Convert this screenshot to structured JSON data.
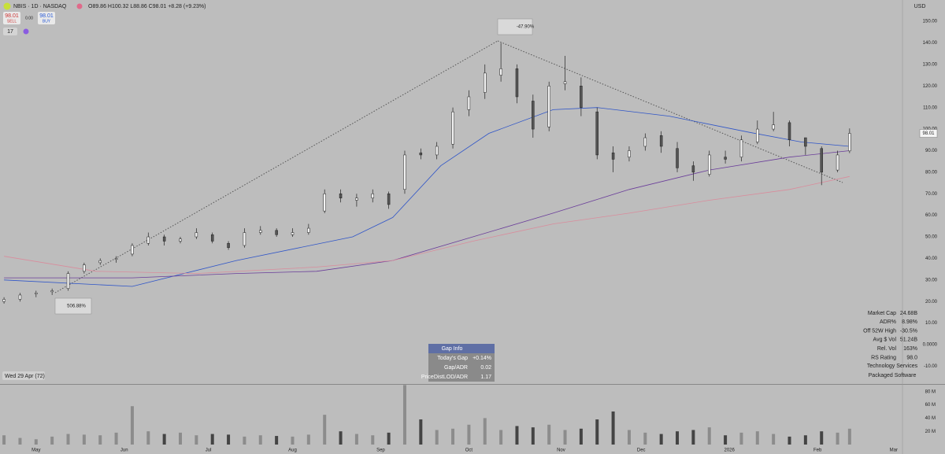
{
  "header": {
    "symbol": "NBIS · 1D · NASDAQ",
    "ohlc": "O89.86 H100.32 L88.86 C98.01 +8.28 (+9.23%)",
    "sell_price": "98.01",
    "sell": "SELL",
    "spread": "0.00",
    "buy_price": "98.01",
    "buy": "BUY",
    "indicator": "17",
    "currency": "USD",
    "last_price": "98.01",
    "date_label": "Wed 29 Apr (72)"
  },
  "annotations": {
    "gain": "506.88%",
    "drawdown": "-47.90%"
  },
  "gap_info": {
    "title": "Gap Info",
    "rows": [
      [
        "Today's Gap",
        "+0.14%"
      ],
      [
        "Gap/ADR",
        "0.02"
      ],
      [
        "PriceDistLOD/ADR",
        "1.17"
      ]
    ]
  },
  "stats": {
    "rows": [
      [
        "Market Cap",
        "24.68B"
      ],
      [
        "ADR%",
        "8.98%"
      ],
      [
        "Off 52W High",
        "-30.5%"
      ],
      [
        "Avg $ Vol",
        "51.24B"
      ],
      [
        "Rel. Vol",
        "163%"
      ],
      [
        "RS Rating",
        "98.0"
      ]
    ],
    "sector": "Technology Services",
    "industry": "Packaged Software"
  },
  "chart_data": [
    {
      "type": "candlestick",
      "up_color": "#f2f2f2",
      "down_color": "#555555",
      "x": [
        0,
        4,
        8,
        12,
        16,
        20,
        24,
        28,
        32,
        36,
        40,
        44,
        48,
        52,
        56,
        60,
        64,
        68,
        72,
        76,
        80,
        84,
        88,
        92,
        96,
        100,
        104,
        108,
        112,
        116,
        120,
        124,
        128,
        132,
        136,
        140,
        144,
        148,
        152,
        156,
        160,
        164,
        168,
        172,
        176,
        180,
        184,
        188,
        192,
        196,
        200,
        204,
        208,
        211
      ],
      "open": [
        20,
        21,
        23.5,
        24.5,
        26,
        34,
        38,
        39.5,
        42,
        47,
        50,
        48,
        50,
        51,
        47,
        46,
        52,
        53,
        51,
        52,
        62,
        70,
        67,
        68,
        70,
        72,
        89,
        88,
        93,
        109,
        117,
        125,
        128,
        113,
        101,
        121,
        120,
        108,
        89,
        87,
        92,
        97,
        91,
        83,
        79,
        87,
        87,
        94,
        100,
        103,
        96,
        91,
        81,
        89.86
      ],
      "high": [
        22,
        24,
        25,
        26,
        34,
        38,
        40,
        41,
        47,
        52,
        51,
        50,
        54,
        52,
        48,
        54,
        55,
        54,
        54,
        56,
        72,
        72,
        70,
        72,
        71,
        90,
        91,
        94,
        110,
        118,
        130,
        140,
        130,
        116,
        122,
        134,
        124,
        110,
        92,
        92,
        98,
        99,
        94,
        85,
        90,
        90,
        97,
        104,
        108,
        104,
        96,
        92,
        90,
        100.32
      ],
      "low": [
        19,
        20,
        22,
        23,
        25,
        33,
        37,
        38,
        41,
        46,
        46,
        47,
        49,
        47,
        44,
        45,
        51,
        50,
        50,
        51,
        61,
        66,
        64,
        66,
        63,
        70,
        86,
        86,
        91,
        106,
        114,
        122,
        112,
        96,
        99,
        118,
        106,
        86,
        80,
        85,
        90,
        89,
        80,
        76,
        78,
        84,
        85,
        93,
        99,
        92,
        88,
        74,
        80,
        88.86
      ],
      "close": [
        21,
        23,
        24,
        25,
        33,
        37,
        39,
        40,
        46,
        50,
        48,
        49,
        52,
        48,
        45,
        52,
        53,
        51,
        52,
        54,
        70,
        68,
        68,
        70,
        65,
        88,
        88,
        92,
        108,
        115,
        126,
        128,
        115,
        100,
        120,
        122,
        110,
        88,
        86,
        90,
        96,
        92,
        82,
        80,
        88,
        86,
        95,
        100,
        102,
        95,
        92,
        80,
        88,
        98.01
      ],
      "lines": [
        {
          "color": "#2f55c8",
          "x": [
            0,
            32,
            58,
            87,
            97,
            109,
            121,
            137,
            148,
            166,
            186,
            199,
            211
          ],
          "values": [
            30,
            27,
            39,
            50,
            59,
            83,
            98,
            109,
            110,
            106,
            98.5,
            94,
            92
          ]
        },
        {
          "color": "#6a3d9a",
          "x": [
            0,
            32,
            58,
            78,
            97,
            117,
            137,
            156,
            176,
            196,
            211
          ],
          "values": [
            31,
            31,
            33,
            34,
            39,
            50,
            61,
            72,
            81,
            87,
            90
          ]
        },
        {
          "color": "#d98c9c",
          "x": [
            0,
            23,
            48,
            78,
            97,
            117,
            137,
            156,
            176,
            196,
            211
          ],
          "values": [
            41,
            34,
            33,
            36,
            39,
            48,
            56,
            61,
            67,
            72,
            78
          ]
        }
      ],
      "xlim": [
        -1,
        224
      ],
      "ylim": [
        -17.9,
        159.9
      ],
      "yticks": [
        {
          "value": 150,
          "label": "150.00"
        },
        {
          "value": 140,
          "label": "140.00"
        },
        {
          "value": 130,
          "label": "130.00"
        },
        {
          "value": 120,
          "label": "120.00"
        },
        {
          "value": 110,
          "label": "110.00"
        },
        {
          "value": 100,
          "label": "100.00"
        },
        {
          "value": 90,
          "label": "90.00"
        },
        {
          "value": 80,
          "label": "80.00"
        },
        {
          "value": 70,
          "label": "70.00"
        },
        {
          "value": 60,
          "label": "60.00"
        },
        {
          "value": 50,
          "label": "50.00"
        },
        {
          "value": 40,
          "label": "40.00"
        },
        {
          "value": 30,
          "label": "30.00"
        },
        {
          "value": 20,
          "label": "20.00"
        },
        {
          "value": 10,
          "label": "10.00"
        },
        {
          "value": 0,
          "label": "0.0000"
        },
        {
          "value": -10,
          "label": "-10.00"
        }
      ]
    },
    {
      "type": "bar",
      "up_color": "#8c8c8c",
      "down_color": "#444444",
      "x": [
        0,
        4,
        8,
        12,
        16,
        20,
        24,
        28,
        32,
        36,
        40,
        44,
        48,
        52,
        56,
        60,
        64,
        68,
        72,
        76,
        80,
        84,
        88,
        92,
        96,
        100,
        104,
        108,
        112,
        116,
        120,
        124,
        128,
        132,
        136,
        140,
        144,
        148,
        152,
        156,
        160,
        164,
        168,
        172,
        176,
        180,
        184,
        188,
        192,
        196,
        200,
        204,
        208,
        211
      ],
      "values": [
        14,
        10,
        8,
        12,
        16,
        15,
        14,
        18,
        58,
        20,
        16,
        18,
        14,
        16,
        15,
        12,
        14,
        13,
        12,
        15,
        45,
        20,
        16,
        14,
        18,
        90,
        38,
        22,
        24,
        30,
        40,
        22,
        28,
        26,
        30,
        22,
        24,
        38,
        50,
        22,
        18,
        16,
        20,
        22,
        26,
        14,
        18,
        20,
        16,
        12,
        14,
        20,
        18,
        24
      ],
      "xlim": [
        -1,
        224
      ],
      "ylim": [
        0,
        88
      ],
      "yticks": [
        {
          "value": 80,
          "label": "80 M"
        },
        {
          "value": 60,
          "label": "60 M"
        },
        {
          "value": 40,
          "label": "40 M"
        },
        {
          "value": 20,
          "label": "20 M"
        }
      ],
      "xticks": [
        {
          "value": 8,
          "label": "May"
        },
        {
          "value": 30,
          "label": "Jun"
        },
        {
          "value": 51,
          "label": "Jul"
        },
        {
          "value": 72,
          "label": "Aug"
        },
        {
          "value": 94,
          "label": "Sep"
        },
        {
          "value": 116,
          "label": "Oct"
        },
        {
          "value": 139,
          "label": "Nov"
        },
        {
          "value": 159,
          "label": "Dec"
        },
        {
          "value": 181,
          "label": "2026"
        },
        {
          "value": 203,
          "label": "Feb"
        },
        {
          "value": 222,
          "label": "Mar"
        }
      ]
    }
  ]
}
